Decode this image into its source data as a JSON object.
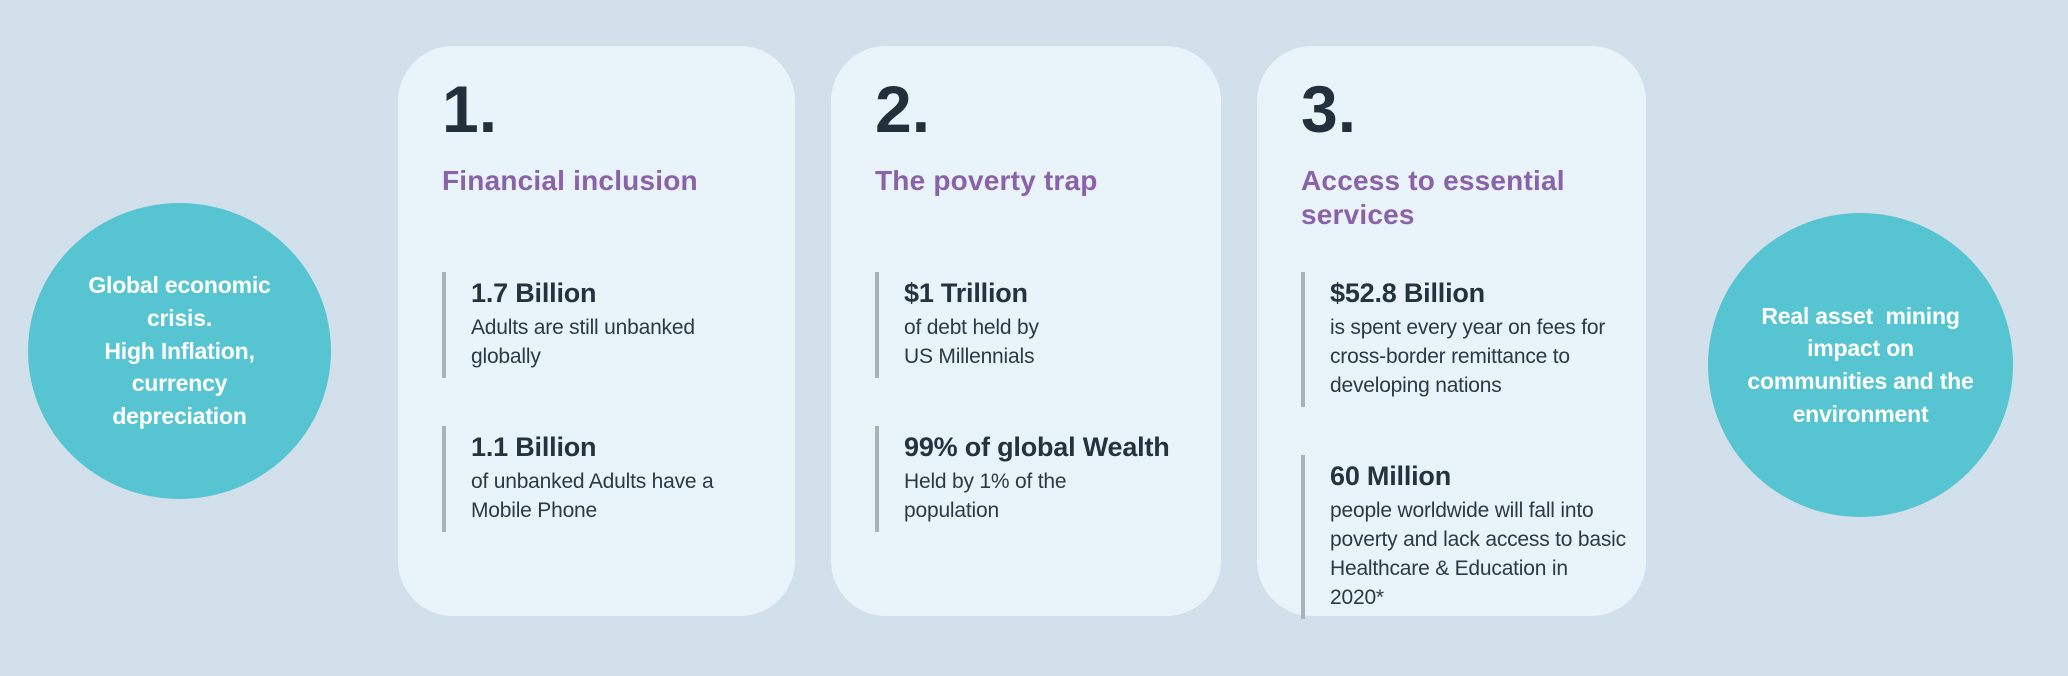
{
  "palette": {
    "page_background": "#d2e0ec",
    "card_background": "#e9f3fa",
    "accent_teal": "#57c5d1",
    "heading_purple": "#8a62aa",
    "text_dark": "#24333f",
    "stat_bar_gray": "#a9b2b9",
    "circle_text_white": "#ffffff"
  },
  "left_circle": {
    "text": "Global economic\ncrisis.\nHigh Inflation,\ncurrency\ndepreciation"
  },
  "right_circle": {
    "text": "Real asset  mining\nimpact on\ncommunities and the\nenvironment"
  },
  "cards": [
    {
      "number": "1.",
      "heading": "Financial inclusion",
      "stats": [
        {
          "value": "1.7 Billion",
          "description": "Adults are still unbanked\nglobally"
        },
        {
          "value": "1.1 Billion",
          "description": "of unbanked Adults have a\nMobile Phone"
        }
      ]
    },
    {
      "number": "2.",
      "heading": "The poverty trap",
      "stats": [
        {
          "value": "$1 Trillion",
          "description": "of debt held by\nUS Millennials"
        },
        {
          "value": "99% of global Wealth",
          "description": "Held by 1% of the\npopulation"
        }
      ]
    },
    {
      "number": "3.",
      "heading": "Access to essential\nservices",
      "stats": [
        {
          "value": "$52.8 Billion",
          "description": "is spent every year on fees for\ncross-border remittance to\ndeveloping nations"
        },
        {
          "value": "60 Million",
          "description": "people worldwide will fall into\npoverty and lack access to basic\nHealthcare & Education in 2020*"
        }
      ]
    }
  ]
}
